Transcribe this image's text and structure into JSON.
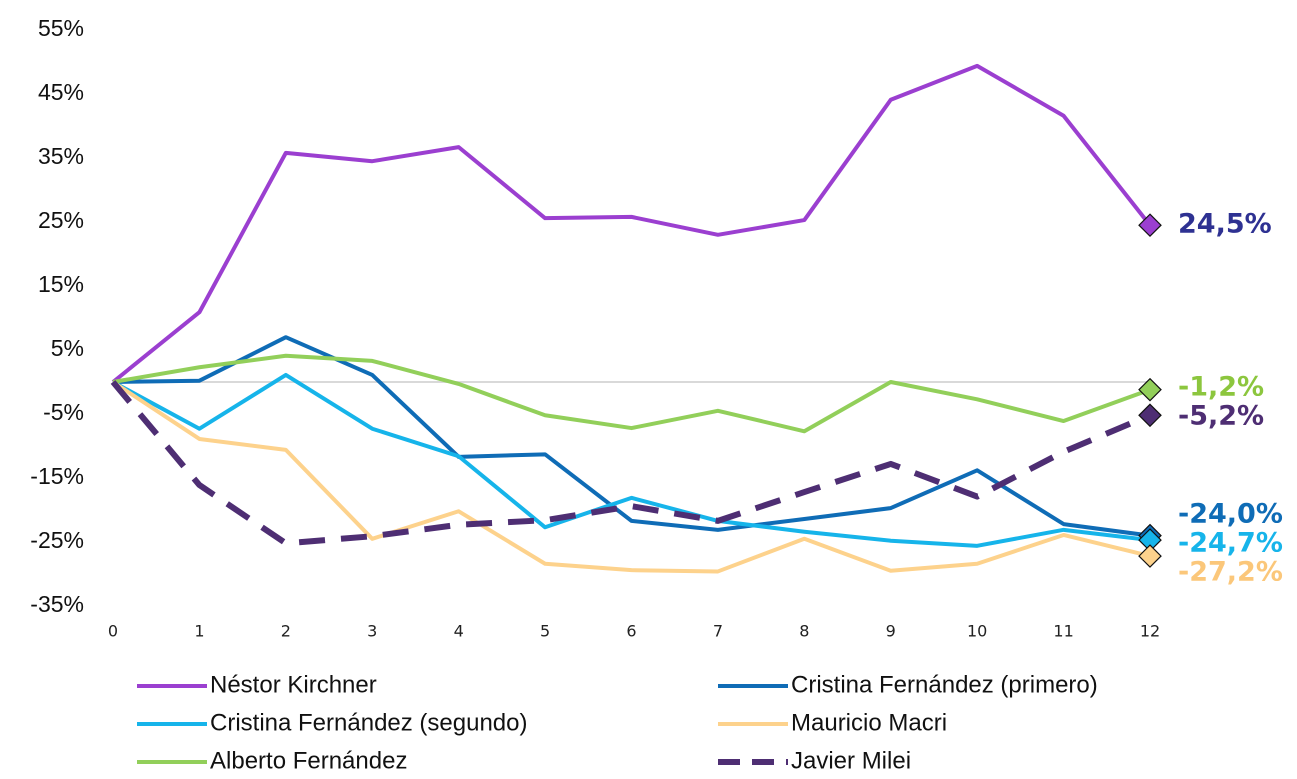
{
  "chart_data": {
    "type": "line",
    "x": [
      0,
      1,
      2,
      3,
      4,
      5,
      6,
      7,
      8,
      9,
      10,
      11,
      12
    ],
    "xlim": [
      0,
      12
    ],
    "xticks": [
      0,
      1,
      2,
      3,
      4,
      5,
      6,
      7,
      8,
      9,
      10,
      11,
      12
    ],
    "ylim": [
      -35,
      55
    ],
    "yticks": [
      {
        "value": -35,
        "label": "-35%"
      },
      {
        "value": -25,
        "label": "-25%"
      },
      {
        "value": -15,
        "label": "-15%"
      },
      {
        "value": -5,
        "label": "-5%"
      },
      {
        "value": 5,
        "label": "5%"
      },
      {
        "value": 15,
        "label": "15%"
      },
      {
        "value": 25,
        "label": "25%"
      },
      {
        "value": 35,
        "label": "35%"
      },
      {
        "value": 45,
        "label": "45%"
      },
      {
        "value": 55,
        "label": "55%"
      }
    ],
    "grid": false,
    "series": [
      {
        "name": "Néstor Kirchner",
        "color": "#9b3fd0",
        "label_color": "#2e3192",
        "dash": false,
        "values": [
          0,
          10.9,
          35.8,
          34.5,
          36.7,
          25.6,
          25.8,
          23.0,
          25.3,
          44.1,
          49.4,
          41.6,
          24.5
        ],
        "value_labels": [
          null,
          null,
          null,
          null,
          null,
          null,
          null,
          null,
          null,
          null,
          null,
          null,
          "24,5%"
        ]
      },
      {
        "name": "Cristina Fernández (primero)",
        "color": "#0f6cb6",
        "label_color": "#0f6cb6",
        "dash": false,
        "values": [
          0,
          0.2,
          7.0,
          1.1,
          -11.7,
          -11.3,
          -21.7,
          -23.1,
          -21.4,
          -19.7,
          -13.8,
          -22.2,
          -24.0
        ],
        "value_labels": [
          null,
          null,
          null,
          null,
          null,
          null,
          null,
          null,
          null,
          null,
          null,
          null,
          "-24,0%"
        ]
      },
      {
        "name": "Cristina Fernández (segundo)",
        "color": "#16b4ea",
        "label_color": "#16b4ea",
        "dash": false,
        "values": [
          0,
          -7.3,
          1.1,
          -7.3,
          -11.6,
          -22.7,
          -18.1,
          -21.7,
          -23.4,
          -24.8,
          -25.6,
          -23.1,
          -24.7
        ],
        "value_labels": [
          null,
          null,
          null,
          null,
          null,
          null,
          null,
          null,
          null,
          null,
          null,
          null,
          "-24,7%"
        ]
      },
      {
        "name": "Mauricio Macri",
        "color": "#fdd28c",
        "label_color": "#fbc77a",
        "dash": false,
        "values": [
          0,
          -8.9,
          -10.6,
          -24.5,
          -20.2,
          -28.4,
          -29.4,
          -29.6,
          -24.5,
          -29.5,
          -28.4,
          -23.9,
          -27.2
        ],
        "value_labels": [
          null,
          null,
          null,
          null,
          null,
          null,
          null,
          null,
          null,
          null,
          null,
          null,
          "-27,2%"
        ]
      },
      {
        "name": "Alberto Fernández",
        "color": "#92cf5a",
        "label_color": "#8cc63e",
        "dash": false,
        "values": [
          0,
          2.3,
          4.1,
          3.3,
          -0.3,
          -5.2,
          -7.2,
          -4.5,
          -7.7,
          0,
          -2.7,
          -6.1,
          -1.2
        ],
        "value_labels": [
          null,
          null,
          null,
          null,
          null,
          null,
          null,
          null,
          null,
          null,
          null,
          null,
          "-1,2%"
        ]
      },
      {
        "name": "Javier Milei",
        "color": "#4e2e73",
        "label_color": "#4e2e73",
        "dash": true,
        "values": [
          0,
          -16.1,
          -25.2,
          -24.1,
          -22.3,
          -21.6,
          -19.4,
          -21.7,
          -17.2,
          -12.8,
          -17.9,
          -10.9,
          -5.2
        ],
        "value_labels": [
          null,
          null,
          null,
          null,
          null,
          null,
          null,
          null,
          null,
          null,
          null,
          null,
          "-5,2%"
        ]
      }
    ]
  }
}
